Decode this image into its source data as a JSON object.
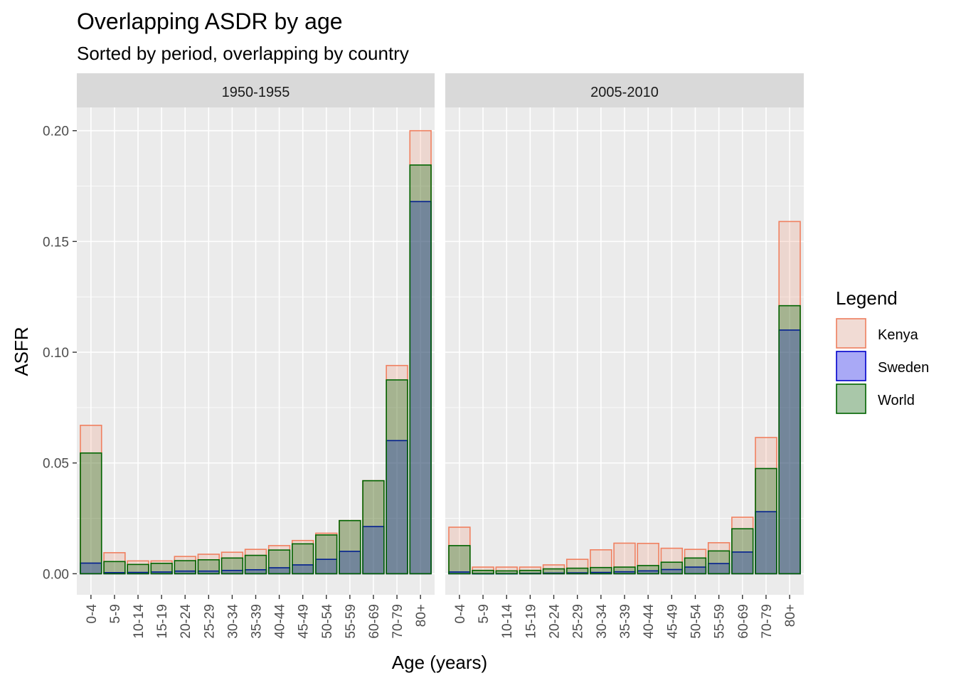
{
  "chart_data": {
    "type": "bar",
    "title": "Overlapping ASDR by age",
    "subtitle": "Sorted by period, overlapping by country",
    "xlabel": "Age (years)",
    "ylabel": "ASFR",
    "ylim": [
      -0.0095,
      0.2105
    ],
    "yticks": [
      "0.00",
      "0.05",
      "0.10",
      "0.15",
      "0.20"
    ],
    "ytick_values": [
      0,
      0.05,
      0.1,
      0.15,
      0.2
    ],
    "grid": true,
    "categories": [
      "0-4",
      "5-9",
      "10-14",
      "15-19",
      "20-24",
      "25-29",
      "30-34",
      "35-39",
      "40-44",
      "45-49",
      "50-54",
      "55-59",
      "60-69",
      "70-79",
      "80+"
    ],
    "legend": {
      "title": "Legend",
      "position": "right",
      "entries": [
        {
          "name": "Kenya",
          "fill": "#f08060",
          "stroke": "#f08060"
        },
        {
          "name": "Sweden",
          "fill": "#0000ff",
          "stroke": "#0000cc"
        },
        {
          "name": "World",
          "fill": "#006400",
          "stroke": "#006400"
        }
      ]
    },
    "panels": [
      {
        "label": "1950-1955",
        "series": [
          {
            "name": "Kenya",
            "values": [
              0.067,
              0.0095,
              0.0058,
              0.0058,
              0.0078,
              0.0088,
              0.0097,
              0.011,
              0.0127,
              0.015,
              0.0183,
              0.024,
              0.042,
              0.094,
              0.2
            ]
          },
          {
            "name": "Sweden",
            "values": [
              0.0048,
              0.0005,
              0.0006,
              0.0008,
              0.0012,
              0.0012,
              0.0015,
              0.0018,
              0.0027,
              0.004,
              0.0065,
              0.0101,
              0.0213,
              0.0601,
              0.168
            ]
          },
          {
            "name": "World",
            "values": [
              0.0545,
              0.0055,
              0.0042,
              0.0047,
              0.0059,
              0.0063,
              0.0071,
              0.0083,
              0.0107,
              0.0135,
              0.0175,
              0.024,
              0.042,
              0.0875,
              0.1845
            ]
          }
        ]
      },
      {
        "label": "2005-2010",
        "series": [
          {
            "name": "Kenya",
            "values": [
              0.021,
              0.003,
              0.003,
              0.003,
              0.004,
              0.0065,
              0.0108,
              0.0138,
              0.0137,
              0.0115,
              0.011,
              0.014,
              0.0255,
              0.0615,
              0.159
            ]
          },
          {
            "name": "Sweden",
            "values": [
              0.0008,
              0.0001,
              0.0001,
              0.0002,
              0.0003,
              0.0004,
              0.0006,
              0.0009,
              0.0013,
              0.0019,
              0.003,
              0.0046,
              0.0098,
              0.028,
              0.11
            ]
          },
          {
            "name": "World",
            "values": [
              0.0127,
              0.0015,
              0.0013,
              0.0015,
              0.0022,
              0.0025,
              0.0028,
              0.003,
              0.0037,
              0.0052,
              0.0071,
              0.0103,
              0.0203,
              0.0475,
              0.121
            ]
          }
        ]
      }
    ]
  }
}
